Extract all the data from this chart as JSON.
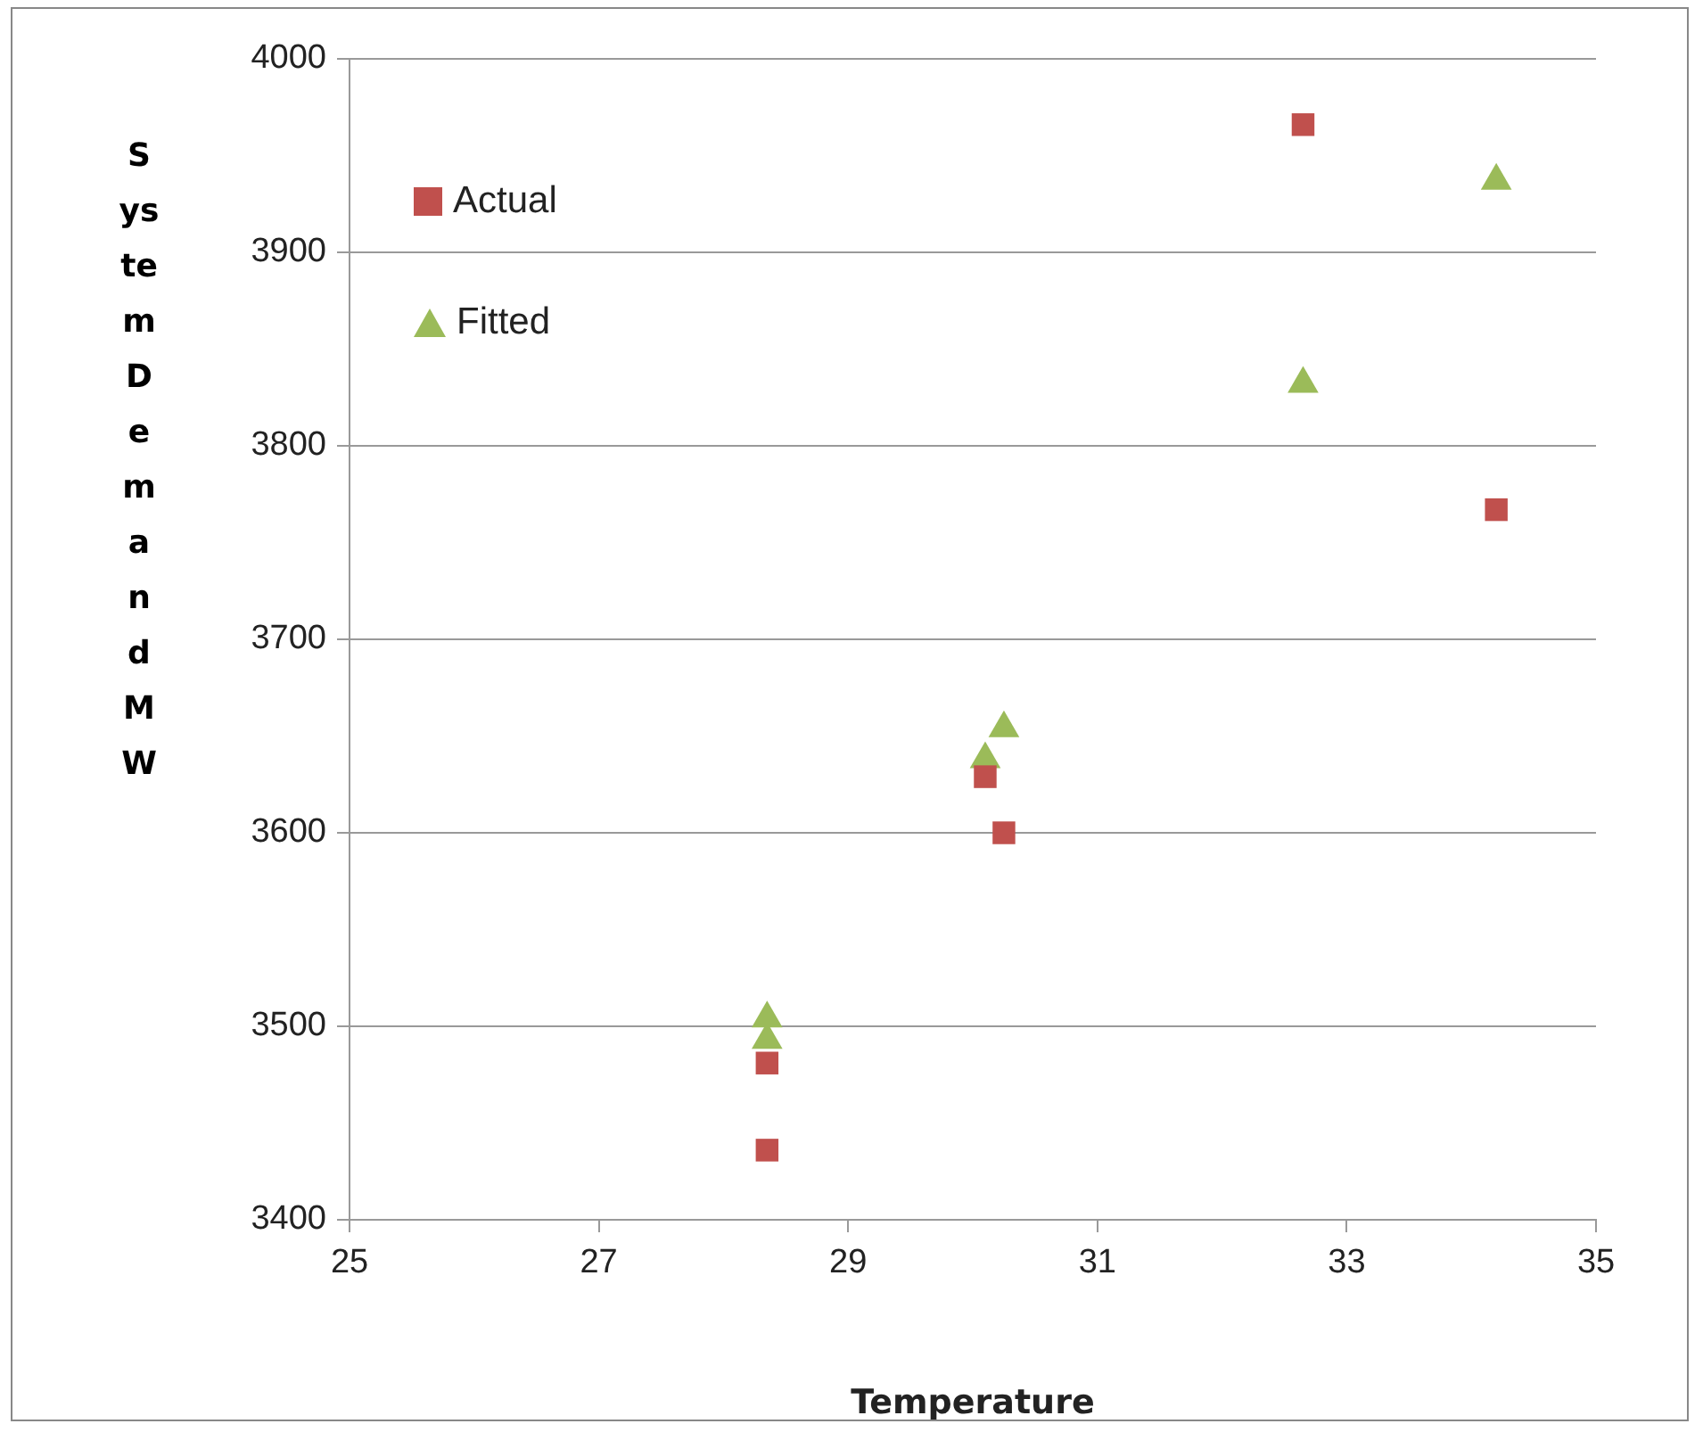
{
  "chart_data": {
    "type": "scatter",
    "xlabel": "Temperature",
    "ylabel": "System Demand MW",
    "xlim": [
      25,
      35
    ],
    "xticks": [
      25,
      27,
      29,
      31,
      33,
      35
    ],
    "ylim": [
      3400,
      4000
    ],
    "yticks": [
      3400,
      3500,
      3600,
      3700,
      3800,
      3900,
      4000
    ],
    "grid": "y",
    "legend": "top left",
    "series": [
      {
        "name": "Actual",
        "color": "#c0504d",
        "marker": "square",
        "x": [
          28.35,
          28.35,
          30.1,
          30.25,
          32.65,
          34.2
        ],
        "values": [
          3481,
          3436,
          3629,
          3600,
          3966,
          3767
        ]
      },
      {
        "name": "Fitted",
        "color": "#9bbb59",
        "marker": "triangle",
        "x": [
          28.35,
          28.35,
          30.1,
          30.25,
          32.65,
          34.2
        ],
        "values": [
          3493,
          3504,
          3638,
          3654,
          3832,
          3937
        ]
      }
    ]
  }
}
